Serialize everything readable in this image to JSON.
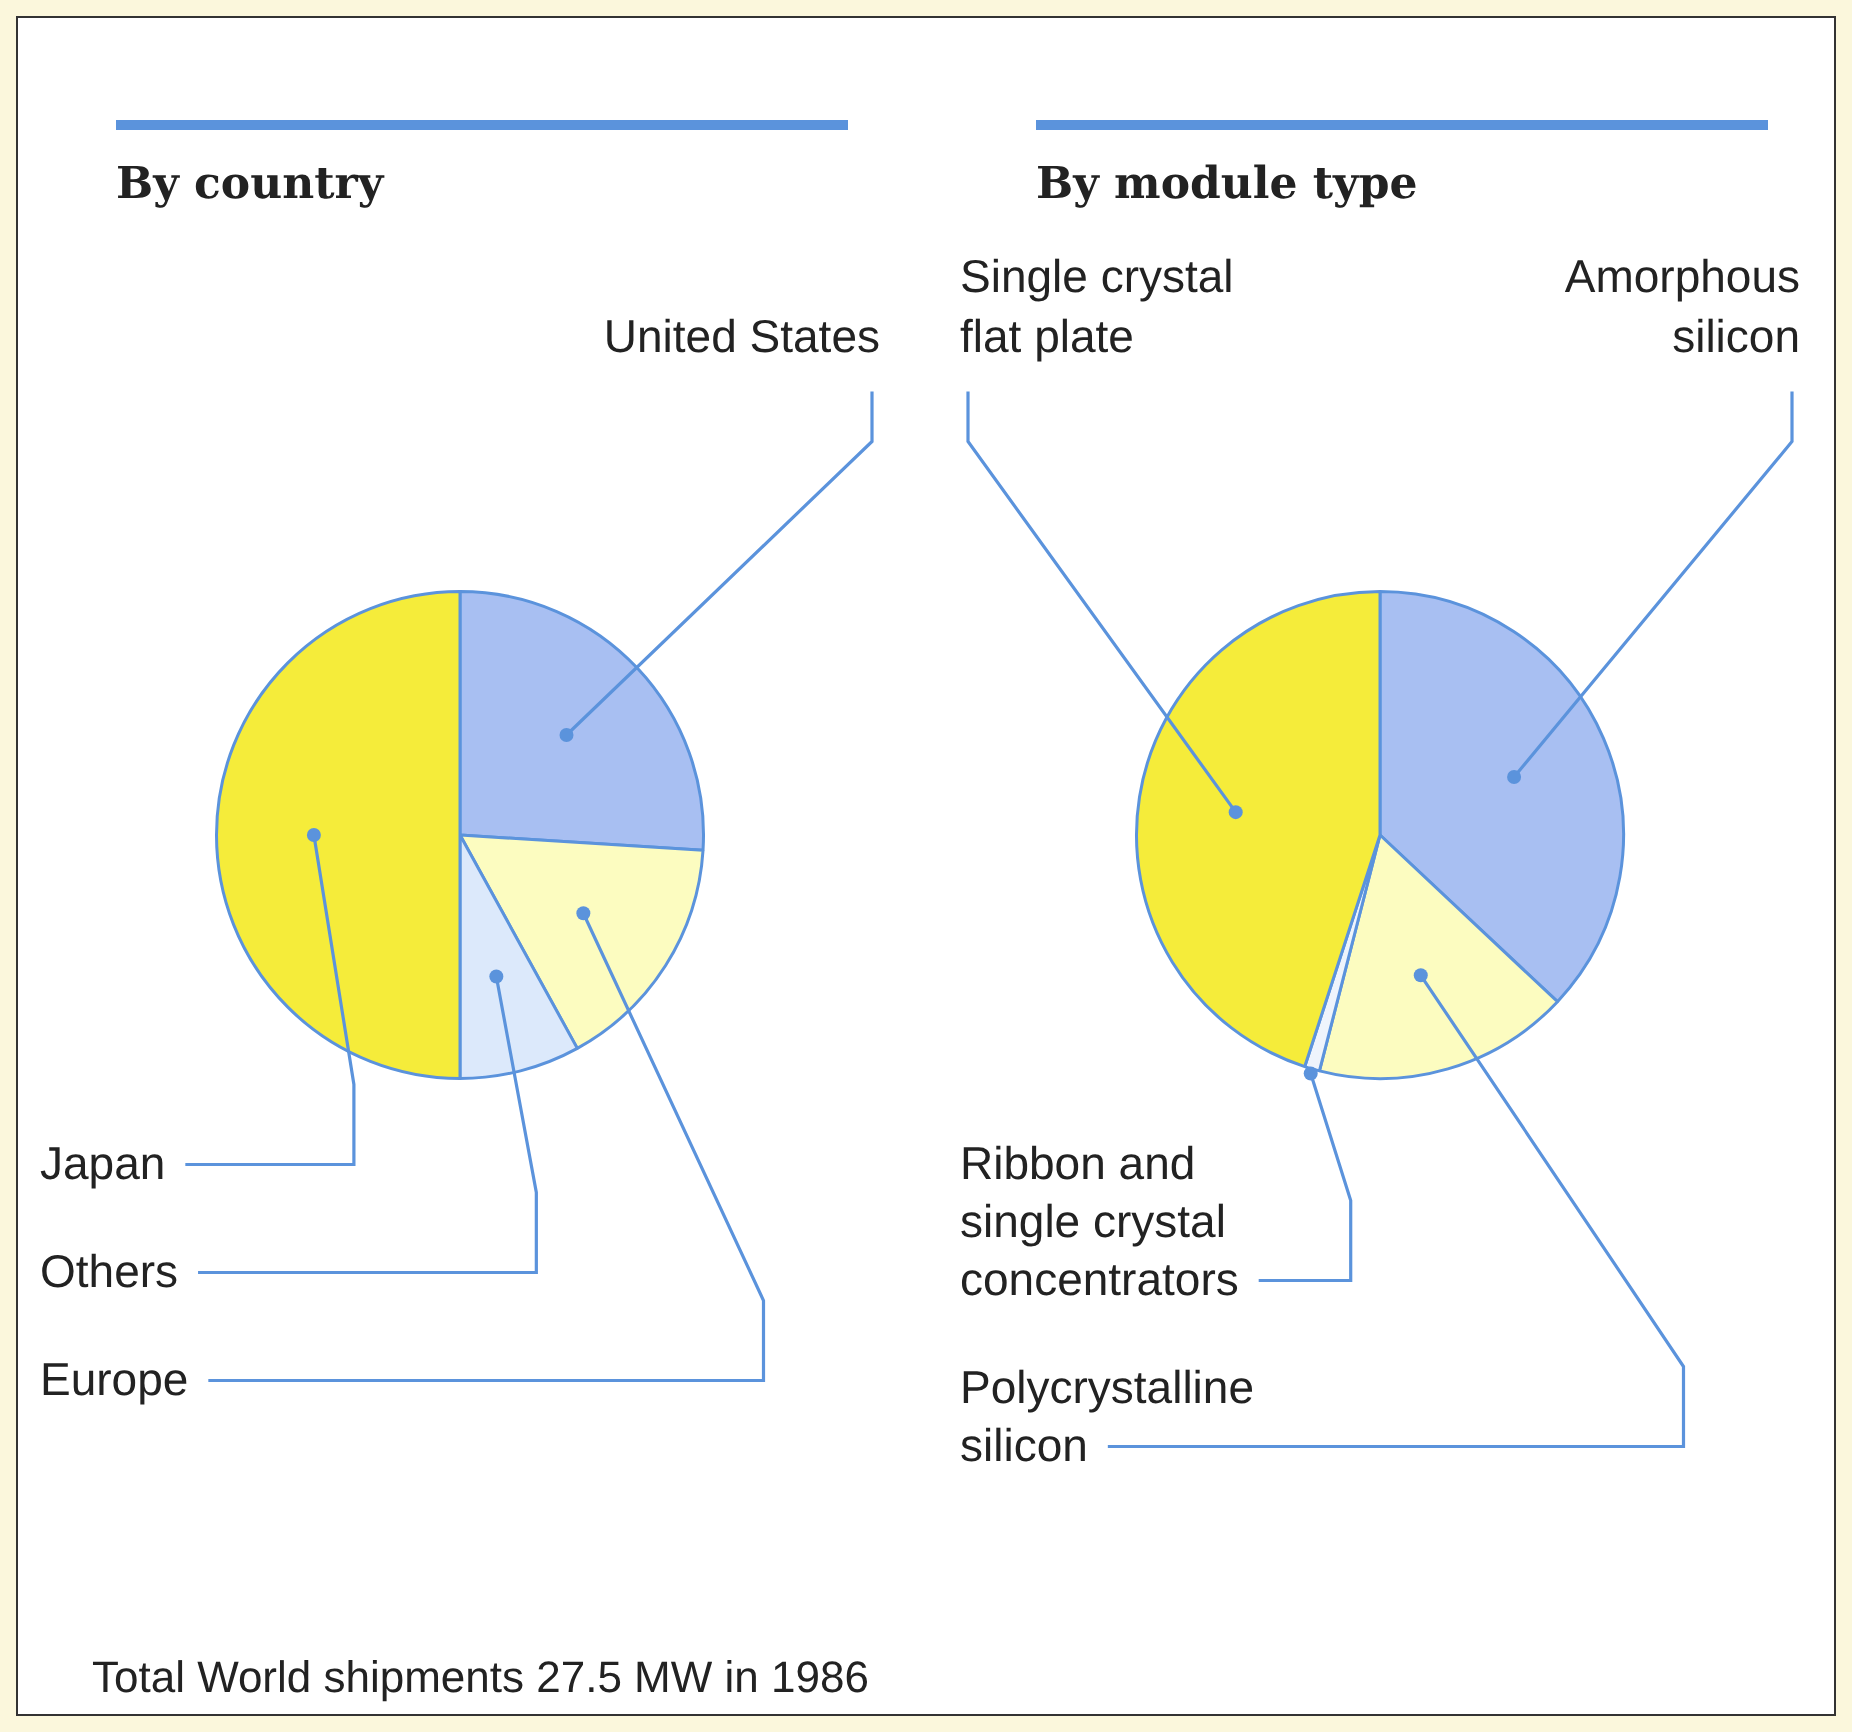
{
  "chart_data": [
    {
      "type": "pie",
      "title": "By country",
      "categories": [
        "United States",
        "Europe",
        "Others",
        "Japan"
      ],
      "values": [
        26,
        16,
        8,
        50
      ],
      "colors": [
        "#a8bff2",
        "#fcfcc0",
        "#dce9fb",
        "#f5ec3a"
      ],
      "legend": false,
      "annotations": [
        "Total World shipments 27.5 MW in 1986"
      ]
    },
    {
      "type": "pie",
      "title": "By module type",
      "categories": [
        "Amorphous silicon",
        "Polycrystalline silicon",
        "Ribbon and single crystal concentrators",
        "Single crystal flat plate"
      ],
      "values": [
        37,
        17,
        1,
        45
      ],
      "colors": [
        "#a8bff2",
        "#fcfcc0",
        "#eef4fc",
        "#f5ec3a"
      ],
      "legend": false
    }
  ]
}
